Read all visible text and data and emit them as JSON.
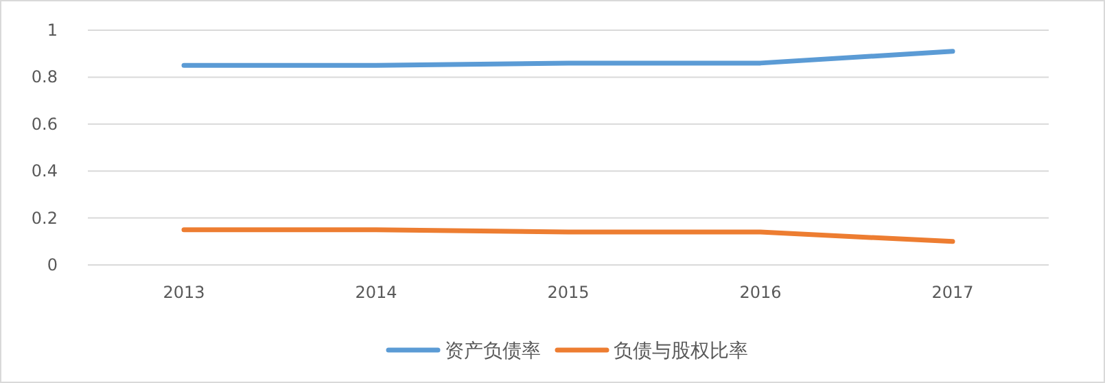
{
  "chart_data": {
    "type": "line",
    "categories": [
      "2013",
      "2014",
      "2015",
      "2016",
      "2017"
    ],
    "series": [
      {
        "name": "资产负债率",
        "color": "#5b9bd5",
        "values": [
          0.85,
          0.85,
          0.86,
          0.86,
          0.91
        ]
      },
      {
        "name": "负债与股权比率",
        "color": "#ed7d31",
        "values": [
          0.15,
          0.15,
          0.14,
          0.14,
          0.1
        ]
      }
    ],
    "ylim": [
      0,
      1
    ],
    "yticks": [
      0,
      {
        "value": 0.2,
        "label": "0.2"
      },
      {
        "value": 0.4,
        "label": "0.4"
      },
      {
        "value": 0.6,
        "label": "0.6"
      },
      {
        "value": 0.8,
        "label": "0.8"
      },
      1
    ],
    "grid": "y",
    "legend": "bottom",
    "marker": "none",
    "line_style": "solid"
  }
}
